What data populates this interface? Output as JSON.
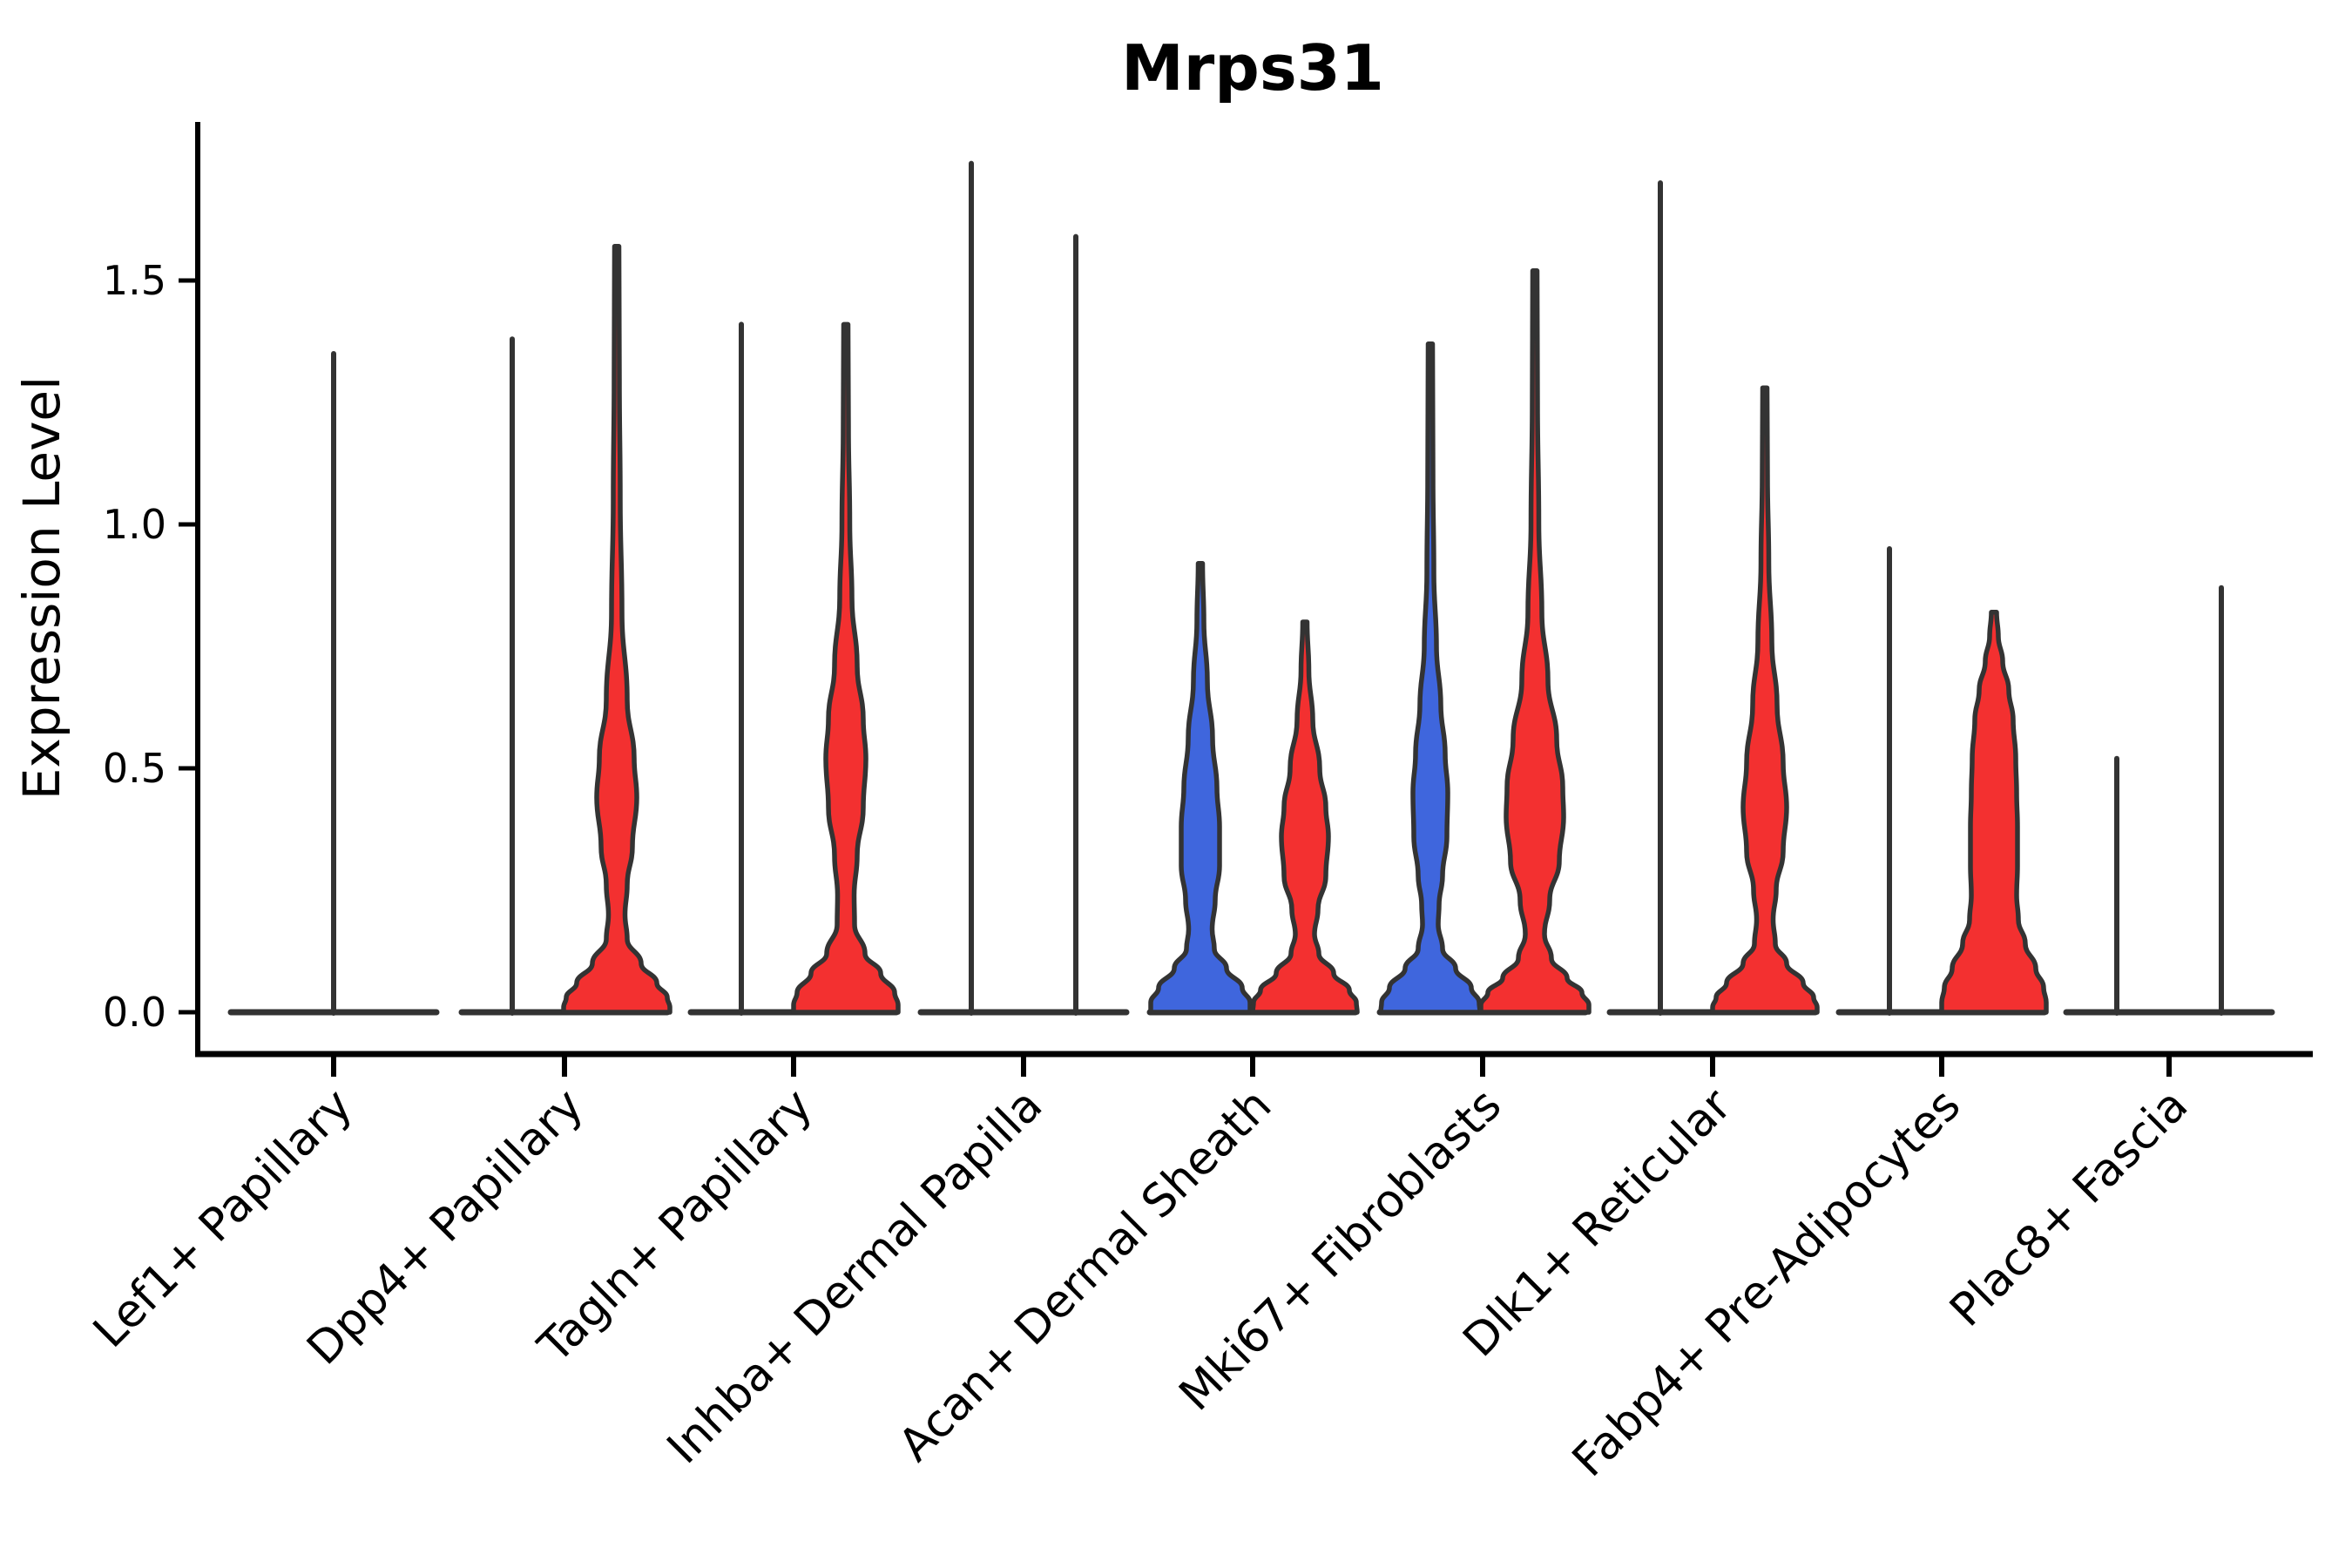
{
  "title": "Mrps31",
  "ylabel": "Expression Level",
  "colors": {
    "red": "#f33030",
    "blue": "#3f66dd",
    "outline": "#333333",
    "axis": "#000000",
    "background": "#ffffff"
  },
  "chart_data": {
    "type": "violin",
    "title": "Mrps31",
    "xlabel": "",
    "ylabel": "Expression Level",
    "ylim": [
      -0.09,
      1.83
    ],
    "yticks": [
      0.0,
      0.5,
      1.0,
      1.5
    ],
    "grid": false,
    "legend": "none",
    "categories": [
      "Lef1+ Papillary",
      "Dpp4+ Papillary",
      "Tagln+ Papillary",
      "Inhba+ Dermal Papilla",
      "Acan+ Dermal Sheath",
      "Mki67+ Fibroblasts",
      "Dlk1+ Reticular",
      "Fabp4+ Pre-Adipocytes",
      "Plac8+ Fascia"
    ],
    "groups": [
      {
        "label": "Lef1+ Papillary",
        "violins": [
          {
            "side": "center",
            "fill": "none",
            "shape": "spike",
            "max": 1.35
          }
        ]
      },
      {
        "label": "Dpp4+ Papillary",
        "violins": [
          {
            "side": "left",
            "fill": "none",
            "shape": "spike",
            "max": 1.38
          },
          {
            "side": "right",
            "fill": "red",
            "shape": "density",
            "max": 1.57,
            "profile": [
              [
                1.57,
                2.5
              ],
              [
                1.3,
                3
              ],
              [
                1.05,
                4
              ],
              [
                0.82,
                6
              ],
              [
                0.64,
                12
              ],
              [
                0.52,
                20
              ],
              [
                0.44,
                23
              ],
              [
                0.34,
                18
              ],
              [
                0.26,
                12
              ],
              [
                0.2,
                9.5
              ],
              [
                0.15,
                12
              ],
              [
                0.1,
                28
              ],
              [
                0.06,
                46
              ],
              [
                0.03,
                58
              ],
              [
                0.01,
                61
              ],
              [
                0,
                61
              ]
            ]
          }
        ]
      },
      {
        "label": "Tagln+ Papillary",
        "violins": [
          {
            "side": "left",
            "fill": "none",
            "shape": "spike",
            "max": 1.41
          },
          {
            "side": "right",
            "fill": "red",
            "shape": "density",
            "max": 1.41,
            "profile": [
              [
                1.41,
                2.5
              ],
              [
                1.2,
                3
              ],
              [
                1.0,
                4.5
              ],
              [
                0.85,
                7
              ],
              [
                0.71,
                13
              ],
              [
                0.6,
                20
              ],
              [
                0.52,
                23
              ],
              [
                0.42,
                20
              ],
              [
                0.32,
                13
              ],
              [
                0.24,
                9.5
              ],
              [
                0.18,
                10
              ],
              [
                0.12,
                22
              ],
              [
                0.08,
                40
              ],
              [
                0.04,
                56
              ],
              [
                0.015,
                60
              ],
              [
                0,
                60
              ]
            ]
          }
        ]
      },
      {
        "label": "Inhba+ Dermal Papilla",
        "violins": [
          {
            "side": "left",
            "fill": "none",
            "shape": "spike",
            "max": 1.74
          },
          {
            "side": "right",
            "fill": "none",
            "shape": "spike",
            "max": 1.59
          }
        ]
      },
      {
        "label": "Acan+ Dermal Sheath",
        "violins": [
          {
            "side": "left",
            "fill": "blue",
            "shape": "density",
            "max": 0.92,
            "profile": [
              [
                0.92,
                2.5
              ],
              [
                0.8,
                4
              ],
              [
                0.68,
                8
              ],
              [
                0.56,
                14
              ],
              [
                0.46,
                19
              ],
              [
                0.38,
                22
              ],
              [
                0.3,
                22
              ],
              [
                0.23,
                17
              ],
              [
                0.17,
                13.5
              ],
              [
                0.13,
                16
              ],
              [
                0.09,
                30
              ],
              [
                0.05,
                48
              ],
              [
                0.02,
                57
              ],
              [
                0,
                57
              ]
            ]
          },
          {
            "side": "right",
            "fill": "red",
            "shape": "density",
            "max": 0.8,
            "profile": [
              [
                0.8,
                2.5
              ],
              [
                0.7,
                4.5
              ],
              [
                0.6,
                9
              ],
              [
                0.5,
                17
              ],
              [
                0.42,
                24
              ],
              [
                0.36,
                27
              ],
              [
                0.28,
                24
              ],
              [
                0.21,
                15
              ],
              [
                0.16,
                11
              ],
              [
                0.12,
                16
              ],
              [
                0.08,
                33
              ],
              [
                0.045,
                51
              ],
              [
                0.02,
                59
              ],
              [
                0,
                60
              ]
            ]
          }
        ]
      },
      {
        "label": "Mki67+ Fibroblasts",
        "violins": [
          {
            "side": "left",
            "fill": "blue",
            "shape": "density",
            "max": 1.37,
            "profile": [
              [
                1.37,
                2.5
              ],
              [
                1.1,
                3
              ],
              [
                0.9,
                4
              ],
              [
                0.75,
                7
              ],
              [
                0.63,
                12
              ],
              [
                0.53,
                17
              ],
              [
                0.45,
                20
              ],
              [
                0.36,
                19
              ],
              [
                0.28,
                14
              ],
              [
                0.22,
                10
              ],
              [
                0.18,
                9
              ],
              [
                0.13,
                14
              ],
              [
                0.09,
                29
              ],
              [
                0.05,
                47
              ],
              [
                0.02,
                56
              ],
              [
                0,
                57
              ]
            ]
          },
          {
            "side": "right",
            "fill": "red",
            "shape": "density",
            "max": 1.52,
            "profile": [
              [
                1.52,
                2.5
              ],
              [
                1.25,
                3
              ],
              [
                1.0,
                4.5
              ],
              [
                0.82,
                8
              ],
              [
                0.68,
                15
              ],
              [
                0.56,
                25
              ],
              [
                0.46,
                32
              ],
              [
                0.4,
                33
              ],
              [
                0.31,
                28
              ],
              [
                0.23,
                17
              ],
              [
                0.16,
                11
              ],
              [
                0.11,
                19
              ],
              [
                0.07,
                37
              ],
              [
                0.04,
                54
              ],
              [
                0.015,
                62
              ],
              [
                0,
                62
              ]
            ]
          }
        ]
      },
      {
        "label": "Dlk1+ Reticular",
        "violins": [
          {
            "side": "left",
            "fill": "none",
            "shape": "spike",
            "max": 1.7
          },
          {
            "side": "right",
            "fill": "red",
            "shape": "density",
            "max": 1.28,
            "profile": [
              [
                1.28,
                2.5
              ],
              [
                1.1,
                3
              ],
              [
                0.92,
                4.5
              ],
              [
                0.76,
                8
              ],
              [
                0.63,
                14
              ],
              [
                0.51,
                21
              ],
              [
                0.42,
                25
              ],
              [
                0.33,
                21
              ],
              [
                0.25,
                13
              ],
              [
                0.19,
                9.5
              ],
              [
                0.14,
                12
              ],
              [
                0.1,
                25
              ],
              [
                0.06,
                44
              ],
              [
                0.03,
                56
              ],
              [
                0.01,
                60
              ],
              [
                0,
                60
              ]
            ]
          }
        ]
      },
      {
        "label": "Fabp4+ Pre-Adipocytes",
        "violins": [
          {
            "side": "left",
            "fill": "none",
            "shape": "spike",
            "max": 0.95
          },
          {
            "side": "right",
            "fill": "red",
            "shape": "density",
            "max": 0.82,
            "profile": [
              [
                0.82,
                3
              ],
              [
                0.77,
                5
              ],
              [
                0.72,
                10
              ],
              [
                0.66,
                17
              ],
              [
                0.6,
                22
              ],
              [
                0.52,
                25
              ],
              [
                0.45,
                26
              ],
              [
                0.38,
                27
              ],
              [
                0.3,
                27
              ],
              [
                0.24,
                26
              ],
              [
                0.19,
                28
              ],
              [
                0.14,
                36
              ],
              [
                0.09,
                48
              ],
              [
                0.05,
                57
              ],
              [
                0.02,
                60
              ],
              [
                0,
                60
              ]
            ]
          }
        ]
      },
      {
        "label": "Plac8+ Fascia",
        "violins": [
          {
            "side": "left",
            "fill": "none",
            "shape": "spike",
            "max": 0.52
          },
          {
            "side": "right",
            "fill": "none",
            "shape": "spike",
            "max": 0.87
          }
        ]
      }
    ]
  }
}
